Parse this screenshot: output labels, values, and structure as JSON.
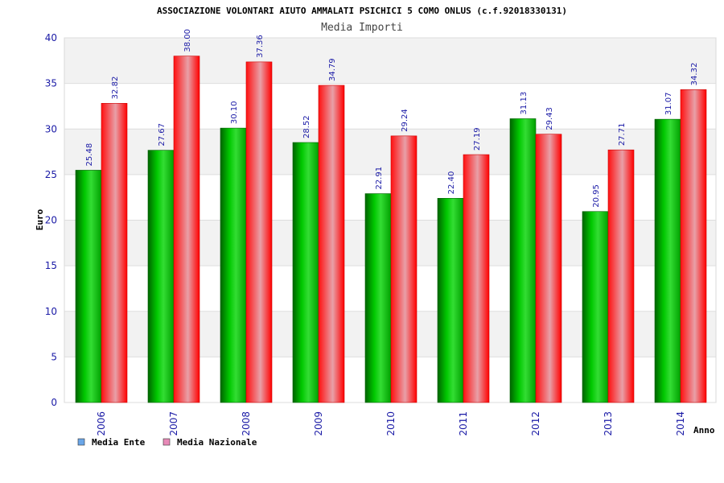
{
  "chart_data": {
    "type": "bar",
    "title": "ASSOCIAZIONE VOLONTARI AIUTO AMMALATI PSICHICI 5 COMO ONLUS (c.f.92018330131)",
    "subtitle": "Media Importi",
    "xlabel": "Anno",
    "ylabel": "Euro",
    "ylim": [
      0,
      40
    ],
    "yticks": [
      "0",
      "5",
      "10",
      "15",
      "20",
      "25",
      "30",
      "35",
      "40"
    ],
    "categories": [
      "2006",
      "2007",
      "2008",
      "2009",
      "2010",
      "2011",
      "2012",
      "2013",
      "2014"
    ],
    "series": [
      {
        "name": "Media Ente",
        "values": [
          25.48,
          27.67,
          30.1,
          28.52,
          22.91,
          22.4,
          31.13,
          20.95,
          31.07
        ],
        "labels": [
          "25.48",
          "27.67",
          "30.10",
          "28.52",
          "22.91",
          "22.40",
          "31.13",
          "20.95",
          "31.07"
        ],
        "color": "#00aa00"
      },
      {
        "name": "Media Nazionale",
        "values": [
          32.82,
          38.0,
          37.36,
          34.79,
          29.24,
          27.19,
          29.43,
          27.71,
          34.32
        ],
        "labels": [
          "32.82",
          "38.00",
          "37.36",
          "34.79",
          "29.24",
          "27.19",
          "29.43",
          "27.71",
          "34.32"
        ],
        "color": "#ff0000"
      }
    ],
    "legend": [
      {
        "label": "Media Ente",
        "swatch": "#6aa6e8"
      },
      {
        "label": "Media Nazionale",
        "swatch": "#e88ab8"
      }
    ],
    "grid": true,
    "legend_position": "bottom-left"
  }
}
